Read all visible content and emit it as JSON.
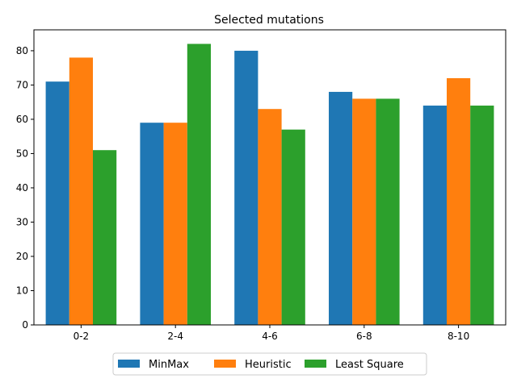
{
  "chart_data": {
    "type": "bar",
    "title": "Selected mutations",
    "xlabel": "",
    "ylabel": "",
    "categories": [
      "0-2",
      "2-4",
      "4-6",
      "6-8",
      "8-10"
    ],
    "series": [
      {
        "name": "MinMax",
        "values": [
          71,
          59,
          80,
          68,
          64
        ],
        "color": "#1f77b4"
      },
      {
        "name": "Heuristic",
        "values": [
          78,
          59,
          63,
          66,
          72
        ],
        "color": "#ff7f0e"
      },
      {
        "name": "Least Square",
        "values": [
          51,
          82,
          57,
          66,
          64
        ],
        "color": "#2ca02c"
      }
    ],
    "yticks": [
      "0",
      "10",
      "20",
      "30",
      "40",
      "50",
      "60",
      "70",
      "80"
    ],
    "ylim": [
      0,
      86.1
    ],
    "grid": false,
    "legend_position": "bottom-center"
  }
}
